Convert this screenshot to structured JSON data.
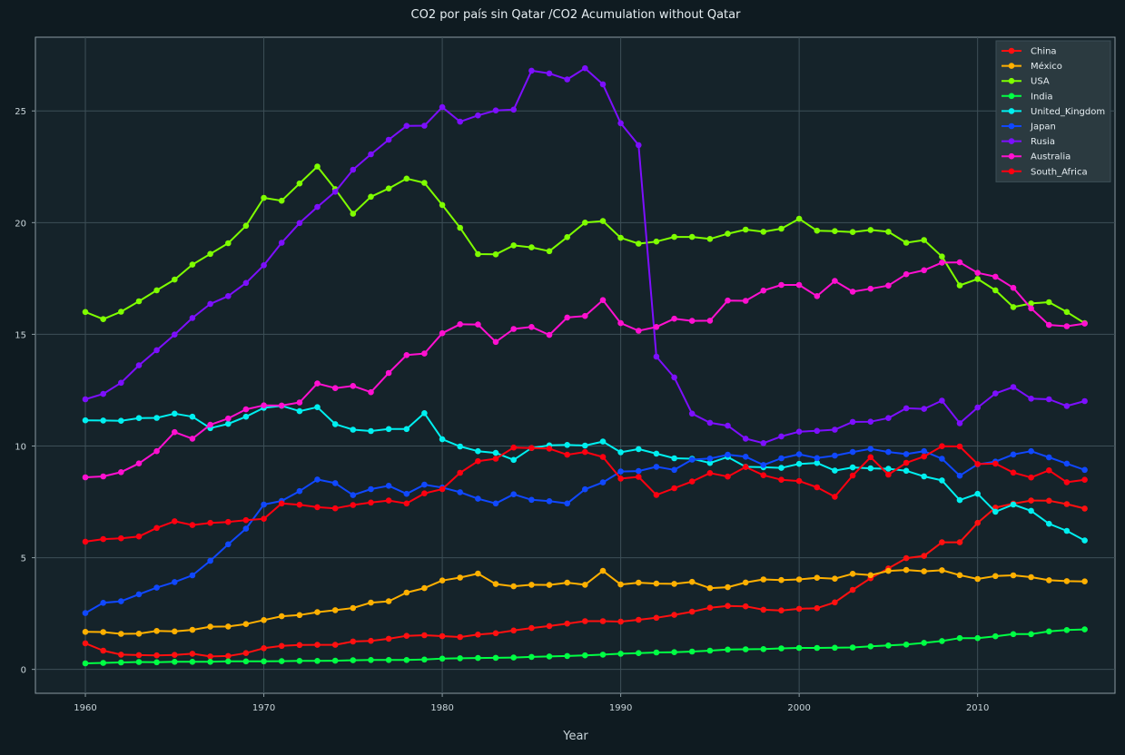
{
  "chart_data": {
    "type": "line",
    "title": "CO2 por país sin Qatar /CO2 Acumulation without Qatar",
    "xlabel": "Year",
    "ylabel": "",
    "xlim": [
      1957.2,
      2017.7
    ],
    "ylim": [
      -1.07,
      28.3
    ],
    "xticks": [
      1960,
      1970,
      1980,
      1990,
      2000,
      2010
    ],
    "yticks": [
      0,
      5,
      10,
      15,
      20,
      25
    ],
    "grid": true,
    "legend_position": "top-right",
    "colors": {
      "background": "#0f1b21",
      "plot_background": "#15232a",
      "grid": "#3d4f57",
      "text": "#e6eef2",
      "legend_background": "#2b3a40"
    },
    "x": [
      1960,
      1961,
      1962,
      1963,
      1964,
      1965,
      1966,
      1967,
      1968,
      1969,
      1970,
      1971,
      1972,
      1973,
      1974,
      1975,
      1976,
      1977,
      1978,
      1979,
      1980,
      1981,
      1982,
      1983,
      1984,
      1985,
      1986,
      1987,
      1988,
      1989,
      1990,
      1991,
      1992,
      1993,
      1994,
      1995,
      1996,
      1997,
      1998,
      1999,
      2000,
      2001,
      2002,
      2003,
      2004,
      2005,
      2006,
      2007,
      2008,
      2009,
      2010,
      2011,
      2012,
      2013,
      2014,
      2015,
      2016
    ],
    "series": [
      {
        "name": "China",
        "color": "#ff1010",
        "values": [
          1.17,
          0.84,
          0.66,
          0.64,
          0.63,
          0.65,
          0.7,
          0.58,
          0.6,
          0.73,
          0.95,
          1.05,
          1.09,
          1.1,
          1.1,
          1.25,
          1.28,
          1.37,
          1.5,
          1.53,
          1.49,
          1.45,
          1.56,
          1.62,
          1.74,
          1.85,
          1.94,
          2.05,
          2.16,
          2.16,
          2.14,
          2.22,
          2.31,
          2.44,
          2.58,
          2.76,
          2.84,
          2.82,
          2.67,
          2.64,
          2.71,
          2.74,
          3.0,
          3.56,
          4.08,
          4.52,
          4.98,
          5.08,
          5.69,
          5.69,
          6.56,
          7.24,
          7.42,
          7.56,
          7.55,
          7.4,
          7.2
        ]
      },
      {
        "name": "México",
        "color": "#ffb000",
        "values": [
          1.68,
          1.67,
          1.59,
          1.6,
          1.72,
          1.7,
          1.77,
          1.91,
          1.92,
          2.03,
          2.21,
          2.38,
          2.43,
          2.56,
          2.65,
          2.75,
          2.99,
          3.05,
          3.44,
          3.64,
          3.98,
          4.11,
          4.29,
          3.82,
          3.72,
          3.79,
          3.78,
          3.88,
          3.79,
          4.41,
          3.8,
          3.88,
          3.84,
          3.83,
          3.92,
          3.64,
          3.68,
          3.89,
          4.03,
          4.0,
          4.03,
          4.1,
          4.06,
          4.28,
          4.22,
          4.41,
          4.45,
          4.39,
          4.44,
          4.22,
          4.05,
          4.18,
          4.21,
          4.13,
          3.99,
          3.95,
          3.94
        ]
      },
      {
        "name": "USA",
        "color": "#7fff00",
        "values": [
          16.0,
          15.68,
          16.01,
          16.48,
          16.97,
          17.45,
          18.12,
          18.6,
          19.08,
          19.86,
          21.11,
          20.98,
          21.75,
          22.51,
          21.5,
          20.4,
          21.16,
          21.53,
          21.97,
          21.78,
          20.79,
          19.77,
          18.59,
          18.58,
          18.98,
          18.89,
          18.72,
          19.35,
          20.0,
          20.07,
          19.32,
          19.06,
          19.15,
          19.36,
          19.36,
          19.27,
          19.5,
          19.69,
          19.59,
          19.73,
          20.17,
          19.64,
          19.62,
          19.58,
          19.67,
          19.59,
          19.1,
          19.22,
          18.48,
          17.19,
          17.48,
          16.97,
          16.22,
          16.38,
          16.44,
          16.0,
          15.5
        ]
      },
      {
        "name": "India",
        "color": "#00ff44",
        "values": [
          0.27,
          0.29,
          0.31,
          0.33,
          0.32,
          0.34,
          0.34,
          0.34,
          0.36,
          0.36,
          0.36,
          0.37,
          0.38,
          0.38,
          0.39,
          0.41,
          0.42,
          0.42,
          0.42,
          0.44,
          0.48,
          0.5,
          0.51,
          0.52,
          0.53,
          0.56,
          0.58,
          0.6,
          0.63,
          0.66,
          0.7,
          0.73,
          0.76,
          0.77,
          0.8,
          0.84,
          0.89,
          0.9,
          0.91,
          0.94,
          0.96,
          0.96,
          0.97,
          0.98,
          1.03,
          1.07,
          1.11,
          1.19,
          1.27,
          1.4,
          1.4,
          1.48,
          1.58,
          1.58,
          1.7,
          1.76,
          1.79
        ]
      },
      {
        "name": "United_Kingdom",
        "color": "#00f0f0",
        "values": [
          11.15,
          11.14,
          11.13,
          11.25,
          11.26,
          11.45,
          11.31,
          10.8,
          10.99,
          11.31,
          11.71,
          11.8,
          11.56,
          11.74,
          10.98,
          10.73,
          10.67,
          10.76,
          10.76,
          11.47,
          10.3,
          9.98,
          9.77,
          9.69,
          9.38,
          9.91,
          10.03,
          10.05,
          10.02,
          10.2,
          9.72,
          9.86,
          9.66,
          9.45,
          9.43,
          9.24,
          9.51,
          9.07,
          9.05,
          9.02,
          9.2,
          9.24,
          8.9,
          9.04,
          9.0,
          8.98,
          8.89,
          8.64,
          8.46,
          7.58,
          7.86,
          7.06,
          7.38,
          7.1,
          6.52,
          6.2,
          5.77
        ]
      },
      {
        "name": "Japan",
        "color": "#1048ff",
        "values": [
          2.52,
          2.98,
          3.05,
          3.36,
          3.66,
          3.91,
          4.21,
          4.86,
          5.6,
          6.3,
          7.38,
          7.54,
          7.98,
          8.5,
          8.34,
          7.8,
          8.07,
          8.22,
          7.86,
          8.27,
          8.14,
          7.93,
          7.64,
          7.43,
          7.84,
          7.59,
          7.53,
          7.43,
          8.06,
          8.37,
          8.86,
          8.88,
          9.07,
          8.93,
          9.39,
          9.44,
          9.61,
          9.52,
          9.15,
          9.45,
          9.63,
          9.46,
          9.57,
          9.73,
          9.87,
          9.73,
          9.64,
          9.77,
          9.43,
          8.67,
          9.18,
          9.3,
          9.62,
          9.77,
          9.49,
          9.21,
          8.93
        ]
      },
      {
        "name": "Rusia",
        "color": "#7d0fff",
        "values": [
          12.09,
          12.33,
          12.83,
          13.61,
          14.29,
          14.99,
          15.73,
          16.36,
          16.71,
          17.3,
          18.09,
          19.1,
          19.98,
          20.7,
          21.38,
          22.37,
          23.06,
          23.71,
          24.33,
          24.34,
          25.17,
          24.52,
          24.8,
          25.02,
          25.06,
          26.8,
          26.68,
          26.41,
          26.91,
          26.19,
          24.45,
          23.47,
          14.0,
          13.07,
          11.45,
          11.04,
          10.91,
          10.33,
          10.13,
          10.43,
          10.64,
          10.68,
          10.73,
          11.08,
          11.09,
          11.25,
          11.69,
          11.66,
          12.03,
          11.02,
          11.72,
          12.35,
          12.64,
          12.12,
          12.09,
          11.79,
          12.01
        ]
      },
      {
        "name": "Australia",
        "color": "#ff10d0",
        "values": [
          8.6,
          8.64,
          8.83,
          9.22,
          9.77,
          10.62,
          10.33,
          10.95,
          11.23,
          11.64,
          11.82,
          11.81,
          11.95,
          12.8,
          12.59,
          12.69,
          12.41,
          13.27,
          14.07,
          14.14,
          15.05,
          15.45,
          15.44,
          14.66,
          15.24,
          15.33,
          14.97,
          15.75,
          15.82,
          16.53,
          15.5,
          15.16,
          15.33,
          15.7,
          15.6,
          15.61,
          16.51,
          16.5,
          16.96,
          17.21,
          17.21,
          16.71,
          17.39,
          16.91,
          17.04,
          17.18,
          17.69,
          17.87,
          18.21,
          18.22,
          17.75,
          17.58,
          17.08,
          16.16,
          15.42,
          15.36,
          15.48
        ]
      },
      {
        "name": "South_Africa",
        "color": "#ff0010",
        "values": [
          5.72,
          5.83,
          5.87,
          5.95,
          6.33,
          6.63,
          6.46,
          6.56,
          6.6,
          6.68,
          6.74,
          7.43,
          7.37,
          7.26,
          7.21,
          7.36,
          7.47,
          7.56,
          7.43,
          7.88,
          8.07,
          8.8,
          9.32,
          9.43,
          9.93,
          9.91,
          9.88,
          9.61,
          9.73,
          9.51,
          8.54,
          8.62,
          7.81,
          8.11,
          8.41,
          8.79,
          8.63,
          9.06,
          8.69,
          8.49,
          8.43,
          8.15,
          7.73,
          8.68,
          9.5,
          8.72,
          9.25,
          9.53,
          9.99,
          9.98,
          9.19,
          9.21,
          8.81,
          8.59,
          8.91,
          8.38,
          8.49
        ]
      }
    ]
  }
}
